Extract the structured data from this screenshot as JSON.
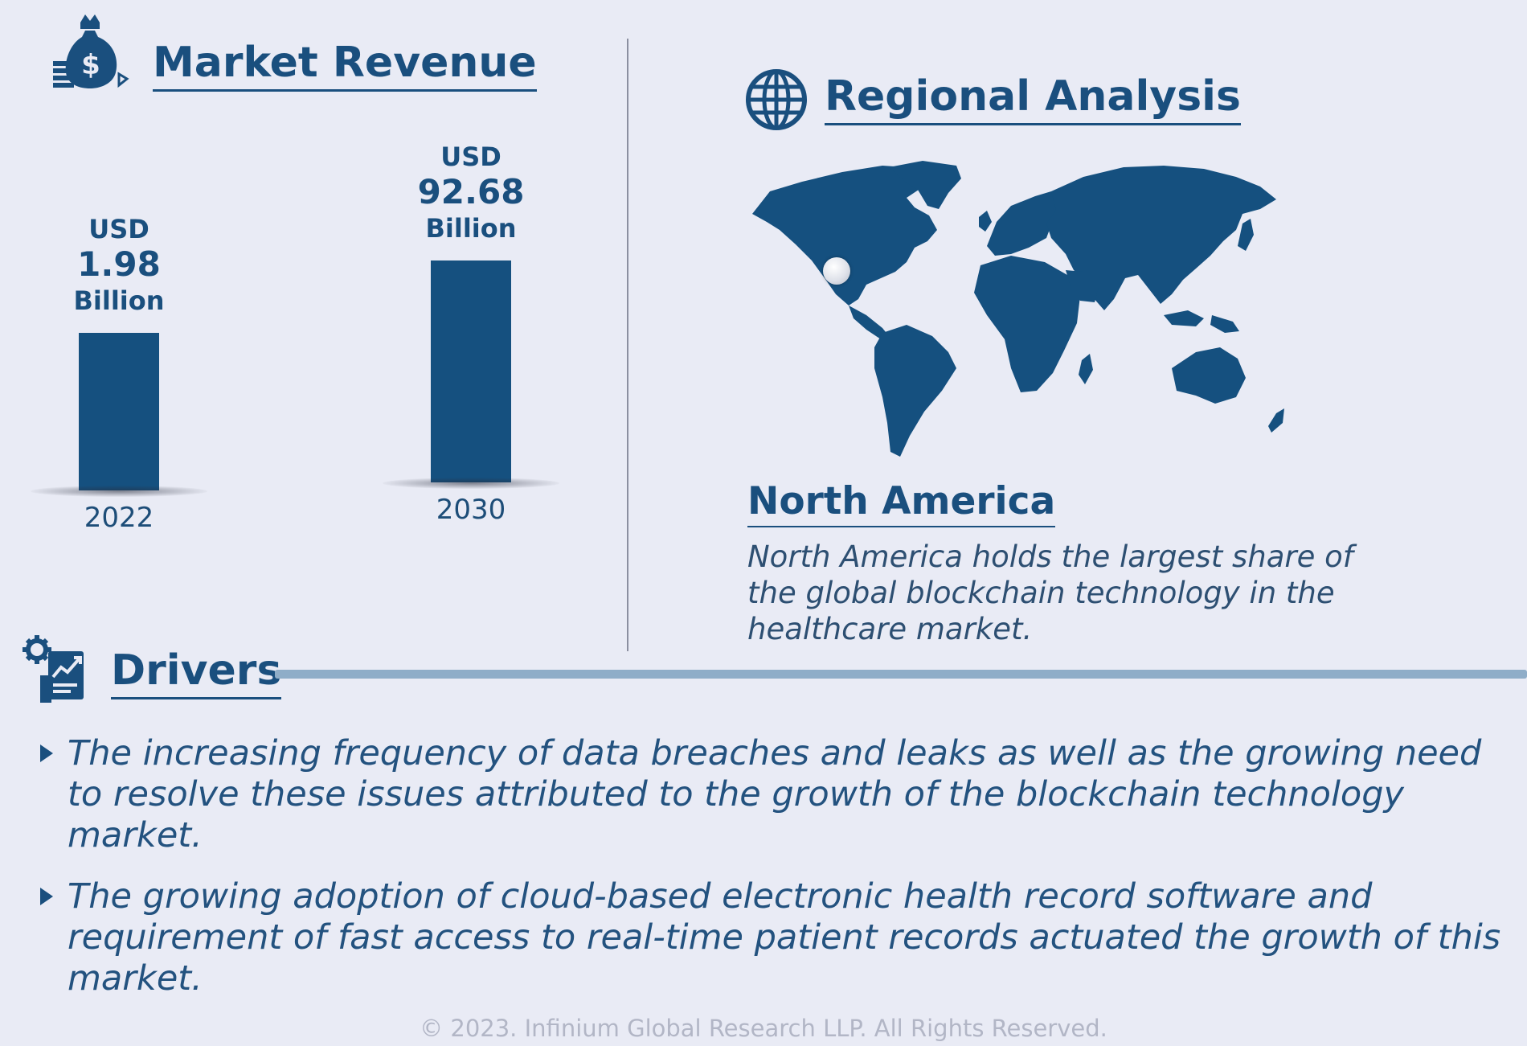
{
  "market_revenue": {
    "title": "Market Revenue",
    "icon": "money-bag-icon"
  },
  "chart_data": {
    "type": "bar",
    "categories": [
      "2022",
      "2030"
    ],
    "values": [
      1.98,
      92.68
    ],
    "value_labels": [
      {
        "currency": "USD",
        "value": "1.98",
        "unit": "Billion"
      },
      {
        "currency": "USD",
        "value": "92.68",
        "unit": "Billion"
      }
    ],
    "title": "",
    "xlabel": "",
    "ylabel": "",
    "bar_color": "#15507f",
    "grid": false,
    "legend": false
  },
  "regional": {
    "title": "Regional Analysis",
    "icon": "globe-icon",
    "region_name": "North America",
    "description": "North America holds the largest share of the global blockchain technology in the healthcare market.",
    "map_color": "#15507f",
    "marker_icon": "location-dot-icon"
  },
  "drivers": {
    "title": "Drivers",
    "icon": "growth-report-icon",
    "items": [
      "The increasing frequency of data breaches and leaks as well as the growing need to resolve these issues attributed to the growth of the blockchain technology market.",
      "The growing adoption of cloud-based electronic health record software and requirement of fast access to real-time patient records actuated the growth of this market."
    ]
  },
  "footer": "© 2023. Infinium Global Research LLP. All Rights Reserved.",
  "colors": {
    "background": "#e9ebf5",
    "primary": "#1a4f7e",
    "accent_line": "#8fadc8"
  }
}
